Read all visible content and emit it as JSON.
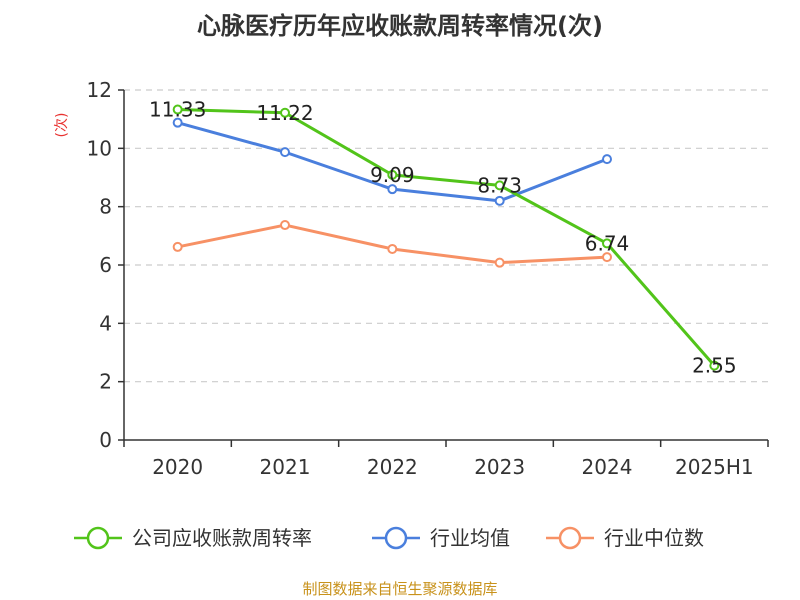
{
  "chart_data": {
    "type": "line",
    "title": "心脉医疗历年应收账款周转率情况(次)",
    "ylabel": "(次)",
    "categories": [
      "2020",
      "2021",
      "2022",
      "2023",
      "2024",
      "2025H1"
    ],
    "ylim": [
      0,
      12
    ],
    "yticks": [
      0,
      2,
      4,
      6,
      8,
      10,
      12
    ],
    "grid": true,
    "legend_position": "bottom",
    "series": [
      {
        "name": "公司应收账款周转率",
        "color": "#52c41a",
        "values": [
          11.33,
          11.22,
          9.09,
          8.73,
          6.74,
          2.55
        ],
        "labels": [
          "11.33",
          "11.22",
          "9.09",
          "8.73",
          "6.74",
          "2.55"
        ]
      },
      {
        "name": "行业均值",
        "color": "#4a7fdd",
        "values": [
          10.88,
          9.87,
          8.6,
          8.2,
          9.63,
          null
        ]
      },
      {
        "name": "行业中位数",
        "color": "#f79165",
        "values": [
          6.62,
          7.37,
          6.55,
          6.08,
          6.27,
          null
        ]
      }
    ],
    "source": "制图数据来自恒生聚源数据库"
  }
}
